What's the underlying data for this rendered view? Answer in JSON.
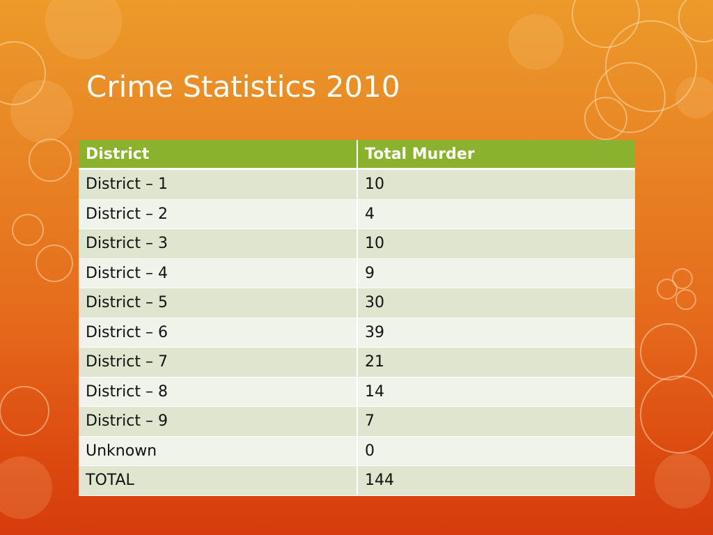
{
  "slide": {
    "title": "Crime Statistics 2010"
  },
  "table": {
    "headers": [
      "District",
      "Total Murder"
    ],
    "rows": [
      [
        "District – 1",
        "10"
      ],
      [
        "District – 2",
        "4"
      ],
      [
        "District – 3",
        "10"
      ],
      [
        "District – 4",
        "9"
      ],
      [
        "District – 5",
        "30"
      ],
      [
        "District – 6",
        "39"
      ],
      [
        "District – 7",
        "21"
      ],
      [
        "District – 8",
        "14"
      ],
      [
        "District – 9",
        "7"
      ],
      [
        "Unknown",
        "0"
      ],
      [
        "TOTAL",
        "144"
      ]
    ]
  },
  "theme": {
    "header_color": "#8ab22f",
    "row_odd_color": "#dfe5cf",
    "row_even_color": "#eff3e9",
    "title_color": "#ffffff"
  }
}
